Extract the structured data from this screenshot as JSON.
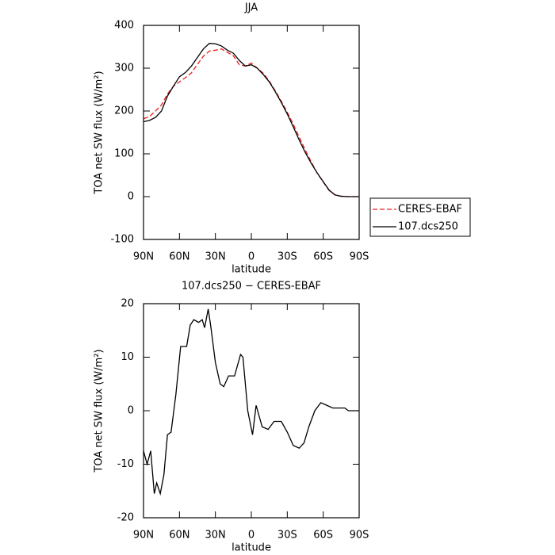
{
  "chart_data": [
    {
      "type": "line",
      "title": "JJA",
      "xlabel": "latitude",
      "ylabel": "TOA net SW flux (W/m²)",
      "x": [
        90,
        85,
        80,
        75,
        70,
        65,
        60,
        55,
        50,
        45,
        40,
        35,
        30,
        25,
        20,
        15,
        10,
        5,
        0,
        -5,
        -10,
        -15,
        -20,
        -25,
        -30,
        -35,
        -40,
        -45,
        -50,
        -55,
        -60,
        -65,
        -70,
        -75,
        -80,
        -85,
        -90
      ],
      "series": [
        {
          "name": "CERES-EBAF",
          "color": "#e8201c",
          "dash": true,
          "values": [
            182,
            187,
            200,
            214,
            240,
            258,
            268,
            278,
            289,
            309,
            328,
            340,
            342,
            345,
            337,
            329,
            308,
            305,
            312,
            300,
            288,
            270,
            247,
            223,
            197,
            169,
            139,
            109,
            81,
            55,
            34,
            14,
            3.5,
            0.5,
            0,
            0,
            0
          ]
        },
        {
          "name": "107.dcs250",
          "color": "#000000",
          "dash": false,
          "values": [
            175,
            178,
            185,
            200,
            235,
            258,
            280,
            290,
            305,
            325,
            345,
            358,
            357,
            352,
            342,
            335,
            318,
            305,
            308,
            300,
            285,
            268,
            245,
            220,
            193,
            163,
            132,
            103,
            78,
            55,
            35,
            15,
            4,
            1,
            0,
            0,
            0
          ]
        }
      ],
      "xlim": [
        90,
        -90
      ],
      "xticks": [
        {
          "value": 90,
          "label": "90N"
        },
        {
          "value": 60,
          "label": "60N"
        },
        {
          "value": 30,
          "label": "30N"
        },
        {
          "value": 0,
          "label": "0"
        },
        {
          "value": -30,
          "label": "30S"
        },
        {
          "value": -60,
          "label": "60S"
        },
        {
          "value": -90,
          "label": "90S"
        }
      ],
      "ylim": [
        -100,
        400
      ],
      "yticks": [
        -100,
        0,
        100,
        200,
        300,
        400
      ],
      "legend": "right"
    },
    {
      "type": "line",
      "title": "107.dcs250 − CERES-EBAF",
      "xlabel": "latitude",
      "ylabel": "TOA net SW flux (W/m²)",
      "x": [
        90,
        87,
        84,
        81,
        79,
        76,
        73,
        70,
        67,
        63,
        59,
        54,
        51,
        48,
        44,
        41,
        39,
        36,
        34,
        30,
        26,
        23,
        19,
        14,
        9,
        7,
        3,
        -1,
        -4,
        -9,
        -14,
        -19,
        -25,
        -30,
        -35,
        -40,
        -44,
        -48,
        -53,
        -58,
        -63,
        -68,
        -78,
        -81,
        -90
      ],
      "series": [
        {
          "color": "#000000",
          "dash": false,
          "values": [
            -7.5,
            -10,
            -7.5,
            -15.5,
            -13.5,
            -15.5,
            -12,
            -4.5,
            -4,
            3,
            12,
            12,
            16,
            17,
            16.5,
            17,
            15.5,
            19,
            16,
            9,
            5,
            4.5,
            6.5,
            6.5,
            10.5,
            10,
            0,
            -4.5,
            1,
            -3,
            -3.5,
            -2,
            -2,
            -4,
            -6.5,
            -7,
            -6,
            -3,
            0,
            1.5,
            1,
            0.5,
            0.5,
            0,
            0
          ]
        }
      ],
      "xlim": [
        90,
        -90
      ],
      "xticks": [
        {
          "value": 90,
          "label": "90N"
        },
        {
          "value": 60,
          "label": "60N"
        },
        {
          "value": 30,
          "label": "30N"
        },
        {
          "value": 0,
          "label": "0"
        },
        {
          "value": -30,
          "label": "30S"
        },
        {
          "value": -60,
          "label": "60S"
        },
        {
          "value": -90,
          "label": "90S"
        }
      ],
      "ylim": [
        -20,
        20
      ],
      "yticks": [
        -20,
        -10,
        0,
        10,
        20
      ]
    }
  ]
}
